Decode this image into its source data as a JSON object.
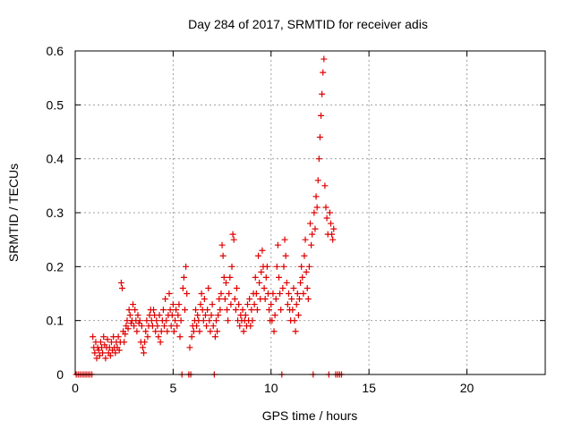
{
  "chart_data": {
    "type": "scatter",
    "title": "Day 284 of 2017, SRMTID for receiver adis",
    "xlabel": "GPS time / hours",
    "ylabel": "SRMTID / TECUs",
    "xlim": [
      0,
      24
    ],
    "ylim": [
      0,
      0.6
    ],
    "xticks": [
      0,
      5,
      10,
      15,
      20
    ],
    "xtick_labels": [
      "0",
      "5",
      "10",
      "15",
      "20"
    ],
    "yticks": [
      0,
      0.1,
      0.2,
      0.3,
      0.4,
      0.5,
      0.6
    ],
    "ytick_labels": [
      "0",
      "0.1",
      "0.2",
      "0.3",
      "0.4",
      "0.5",
      "0.6"
    ],
    "grid": true,
    "marker": "+",
    "series": [
      {
        "name": "SRMTID",
        "color": "#e00000",
        "points": [
          [
            0.05,
            0.0
          ],
          [
            0.15,
            0.0
          ],
          [
            0.25,
            0.0
          ],
          [
            0.35,
            0.0
          ],
          [
            0.45,
            0.0
          ],
          [
            0.55,
            0.0
          ],
          [
            0.65,
            0.0
          ],
          [
            0.75,
            0.0
          ],
          [
            0.85,
            0.0
          ],
          [
            0.9,
            0.07
          ],
          [
            0.95,
            0.05
          ],
          [
            1.0,
            0.04
          ],
          [
            1.05,
            0.06
          ],
          [
            1.1,
            0.03
          ],
          [
            1.15,
            0.05
          ],
          [
            1.2,
            0.045
          ],
          [
            1.25,
            0.035
          ],
          [
            1.3,
            0.06
          ],
          [
            1.35,
            0.05
          ],
          [
            1.4,
            0.04
          ],
          [
            1.45,
            0.07
          ],
          [
            1.5,
            0.055
          ],
          [
            1.55,
            0.03
          ],
          [
            1.6,
            0.05
          ],
          [
            1.65,
            0.065
          ],
          [
            1.7,
            0.04
          ],
          [
            1.75,
            0.05
          ],
          [
            1.8,
            0.035
          ],
          [
            1.85,
            0.06
          ],
          [
            1.9,
            0.045
          ],
          [
            1.95,
            0.07
          ],
          [
            2.0,
            0.05
          ],
          [
            2.05,
            0.04
          ],
          [
            2.1,
            0.06
          ],
          [
            2.15,
            0.05
          ],
          [
            2.2,
            0.07
          ],
          [
            2.25,
            0.045
          ],
          [
            2.3,
            0.06
          ],
          [
            2.35,
            0.17
          ],
          [
            2.4,
            0.16
          ],
          [
            2.45,
            0.08
          ],
          [
            2.5,
            0.06
          ],
          [
            2.55,
            0.075
          ],
          [
            2.6,
            0.09
          ],
          [
            2.65,
            0.1
          ],
          [
            2.7,
            0.085
          ],
          [
            2.75,
            0.12
          ],
          [
            2.8,
            0.11
          ],
          [
            2.85,
            0.095
          ],
          [
            2.9,
            0.1
          ],
          [
            2.95,
            0.13
          ],
          [
            3.0,
            0.09
          ],
          [
            3.05,
            0.12
          ],
          [
            3.1,
            0.1
          ],
          [
            3.15,
            0.08
          ],
          [
            3.2,
            0.11
          ],
          [
            3.25,
            0.095
          ],
          [
            3.3,
            0.1
          ],
          [
            3.35,
            0.06
          ],
          [
            3.4,
            0.09
          ],
          [
            3.45,
            0.05
          ],
          [
            3.5,
            0.04
          ],
          [
            3.55,
            0.06
          ],
          [
            3.6,
            0.08
          ],
          [
            3.65,
            0.1
          ],
          [
            3.7,
            0.07
          ],
          [
            3.75,
            0.09
          ],
          [
            3.8,
            0.11
          ],
          [
            3.85,
            0.12
          ],
          [
            3.9,
            0.1
          ],
          [
            3.95,
            0.09
          ],
          [
            4.0,
            0.12
          ],
          [
            4.05,
            0.11
          ],
          [
            4.1,
            0.08
          ],
          [
            4.15,
            0.1
          ],
          [
            4.2,
            0.09
          ],
          [
            4.25,
            0.07
          ],
          [
            4.3,
            0.11
          ],
          [
            4.35,
            0.06
          ],
          [
            4.4,
            0.08
          ],
          [
            4.45,
            0.1
          ],
          [
            4.5,
            0.12
          ],
          [
            4.55,
            0.09
          ],
          [
            4.6,
            0.14
          ],
          [
            4.65,
            0.1
          ],
          [
            4.7,
            0.08
          ],
          [
            4.75,
            0.11
          ],
          [
            4.8,
            0.15
          ],
          [
            4.85,
            0.12
          ],
          [
            4.9,
            0.09
          ],
          [
            4.95,
            0.11
          ],
          [
            5.0,
            0.13
          ],
          [
            5.05,
            0.08
          ],
          [
            5.1,
            0.1
          ],
          [
            5.15,
            0.12
          ],
          [
            5.2,
            0.09
          ],
          [
            5.25,
            0.11
          ],
          [
            5.3,
            0.13
          ],
          [
            5.35,
            0.07
          ],
          [
            5.4,
            0.1
          ],
          [
            5.45,
            0.0
          ],
          [
            5.5,
            0.16
          ],
          [
            5.55,
            0.18
          ],
          [
            5.6,
            0.12
          ],
          [
            5.65,
            0.2
          ],
          [
            5.7,
            0.15
          ],
          [
            5.8,
            0.0
          ],
          [
            5.85,
            0.05
          ],
          [
            5.9,
            0.0
          ],
          [
            5.95,
            0.07
          ],
          [
            6.0,
            0.09
          ],
          [
            6.05,
            0.08
          ],
          [
            6.1,
            0.1
          ],
          [
            6.15,
            0.12
          ],
          [
            6.2,
            0.09
          ],
          [
            6.25,
            0.11
          ],
          [
            6.3,
            0.1
          ],
          [
            6.35,
            0.08
          ],
          [
            6.4,
            0.13
          ],
          [
            6.45,
            0.15
          ],
          [
            6.5,
            0.12
          ],
          [
            6.55,
            0.1
          ],
          [
            6.6,
            0.14
          ],
          [
            6.65,
            0.11
          ],
          [
            6.7,
            0.09
          ],
          [
            6.75,
            0.12
          ],
          [
            6.8,
            0.16
          ],
          [
            6.85,
            0.1
          ],
          [
            6.9,
            0.08
          ],
          [
            6.95,
            0.11
          ],
          [
            7.0,
            0.13
          ],
          [
            7.05,
            0.09
          ],
          [
            7.1,
            0.0
          ],
          [
            7.15,
            0.07
          ],
          [
            7.2,
            0.1
          ],
          [
            7.25,
            0.08
          ],
          [
            7.3,
            0.11
          ],
          [
            7.35,
            0.14
          ],
          [
            7.4,
            0.12
          ],
          [
            7.45,
            0.15
          ],
          [
            7.5,
            0.24
          ],
          [
            7.55,
            0.22
          ],
          [
            7.6,
            0.18
          ],
          [
            7.65,
            0.14
          ],
          [
            7.7,
            0.17
          ],
          [
            7.75,
            0.12
          ],
          [
            7.8,
            0.1
          ],
          [
            7.85,
            0.15
          ],
          [
            7.9,
            0.18
          ],
          [
            7.95,
            0.13
          ],
          [
            8.0,
            0.2
          ],
          [
            8.05,
            0.26
          ],
          [
            8.1,
            0.25
          ],
          [
            8.15,
            0.14
          ],
          [
            8.2,
            0.12
          ],
          [
            8.25,
            0.16
          ],
          [
            8.3,
            0.1
          ],
          [
            8.35,
            0.13
          ],
          [
            8.4,
            0.09
          ],
          [
            8.45,
            0.11
          ],
          [
            8.5,
            0.1
          ],
          [
            8.55,
            0.12
          ],
          [
            8.6,
            0.08
          ],
          [
            8.65,
            0.1
          ],
          [
            8.7,
            0.11
          ],
          [
            8.75,
            0.09
          ],
          [
            8.8,
            0.13
          ],
          [
            8.85,
            0.1
          ],
          [
            8.9,
            0.14
          ],
          [
            8.95,
            0.09
          ],
          [
            9.0,
            0.12
          ],
          [
            9.05,
            0.1
          ],
          [
            9.1,
            0.15
          ],
          [
            9.15,
            0.13
          ],
          [
            9.2,
            0.18
          ],
          [
            9.25,
            0.15
          ],
          [
            9.3,
            0.12
          ],
          [
            9.35,
            0.22
          ],
          [
            9.4,
            0.17
          ],
          [
            9.45,
            0.14
          ],
          [
            9.5,
            0.19
          ],
          [
            9.55,
            0.23
          ],
          [
            9.6,
            0.2
          ],
          [
            9.65,
            0.16
          ],
          [
            9.7,
            0.14
          ],
          [
            9.75,
            0.18
          ],
          [
            9.8,
            0.2
          ],
          [
            9.85,
            0.15
          ],
          [
            9.9,
            0.12
          ],
          [
            9.95,
            0.1
          ],
          [
            10.0,
            0.13
          ],
          [
            10.05,
            0.1
          ],
          [
            10.1,
            0.15
          ],
          [
            10.15,
            0.08
          ],
          [
            10.2,
            0.11
          ],
          [
            10.25,
            0.14
          ],
          [
            10.3,
            0.2
          ],
          [
            10.35,
            0.24
          ],
          [
            10.4,
            0.18
          ],
          [
            10.45,
            0.15
          ],
          [
            10.5,
            0.12
          ],
          [
            10.55,
            0.0
          ],
          [
            10.6,
            0.16
          ],
          [
            10.65,
            0.2
          ],
          [
            10.7,
            0.25
          ],
          [
            10.75,
            0.22
          ],
          [
            10.8,
            0.17
          ],
          [
            10.85,
            0.13
          ],
          [
            10.9,
            0.15
          ],
          [
            10.95,
            0.12
          ],
          [
            11.0,
            0.1
          ],
          [
            11.05,
            0.14
          ],
          [
            11.1,
            0.12
          ],
          [
            11.15,
            0.16
          ],
          [
            11.2,
            0.1
          ],
          [
            11.25,
            0.08
          ],
          [
            11.3,
            0.13
          ],
          [
            11.35,
            0.15
          ],
          [
            11.4,
            0.11
          ],
          [
            11.45,
            0.14
          ],
          [
            11.5,
            0.17
          ],
          [
            11.55,
            0.2
          ],
          [
            11.6,
            0.18
          ],
          [
            11.65,
            0.15
          ],
          [
            11.7,
            0.22
          ],
          [
            11.75,
            0.25
          ],
          [
            11.8,
            0.19
          ],
          [
            11.85,
            0.16
          ],
          [
            11.9,
            0.14
          ],
          [
            11.95,
            0.2
          ],
          [
            12.0,
            0.28
          ],
          [
            12.05,
            0.24
          ],
          [
            12.1,
            0.26
          ],
          [
            12.15,
            0.0
          ],
          [
            12.2,
            0.3
          ],
          [
            12.25,
            0.27
          ],
          [
            12.3,
            0.33
          ],
          [
            12.35,
            0.31
          ],
          [
            12.4,
            0.36
          ],
          [
            12.45,
            0.4
          ],
          [
            12.5,
            0.44
          ],
          [
            12.55,
            0.48
          ],
          [
            12.6,
            0.52
          ],
          [
            12.65,
            0.56
          ],
          [
            12.7,
            0.585
          ],
          [
            12.75,
            0.35
          ],
          [
            12.8,
            0.31
          ],
          [
            12.85,
            0.29
          ],
          [
            12.9,
            0.26
          ],
          [
            12.95,
            0.0
          ],
          [
            13.0,
            0.3
          ],
          [
            13.05,
            0.28
          ],
          [
            13.1,
            0.26
          ],
          [
            13.15,
            0.25
          ],
          [
            13.2,
            0.27
          ],
          [
            13.3,
            0.0
          ],
          [
            13.4,
            0.0
          ],
          [
            13.5,
            0.0
          ],
          [
            13.6,
            0.0
          ]
        ]
      }
    ]
  }
}
